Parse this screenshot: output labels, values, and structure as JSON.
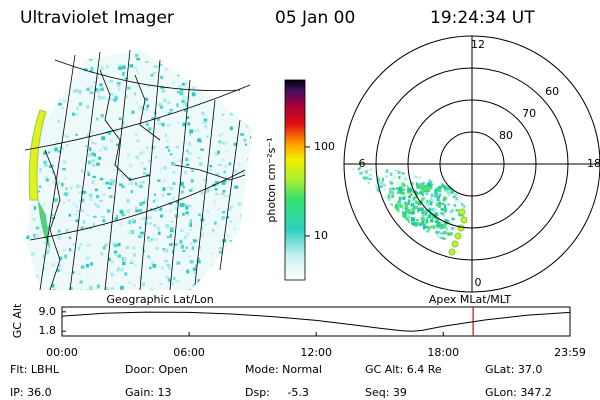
{
  "header": {
    "title": "Ultraviolet Imager",
    "date": "05 Jan 00",
    "time": "19:24:34 UT"
  },
  "chart_data": [
    {
      "type": "map",
      "title": "Geographic Lat/Lon"
    },
    {
      "type": "colorbar",
      "label": "photon cm⁻²s⁻¹",
      "log_scale": true,
      "clim": [
        3.2,
        565
      ],
      "ticks": [
        10,
        100
      ]
    },
    {
      "type": "polar",
      "title": "Apex MLat/MLT",
      "rlim": [
        90,
        50
      ],
      "rticks": [
        80,
        70,
        60
      ],
      "theta_ticks": [
        0,
        6,
        12,
        18
      ]
    },
    {
      "type": "line",
      "ylabel": "GC Alt",
      "color": "#000000",
      "x": [
        0,
        2,
        4,
        6,
        8,
        10,
        12,
        14,
        15,
        16,
        16.5,
        17,
        18,
        20,
        22,
        23.983
      ],
      "values": [
        7.4,
        8.5,
        8.9,
        8.8,
        8.2,
        7.2,
        5.8,
        3.9,
        2.9,
        2.0,
        1.8,
        2.1,
        3.6,
        6.0,
        7.8,
        8.8
      ],
      "xlim": [
        0,
        23.983
      ],
      "xticks": [
        {
          "value": 0,
          "label": "00:00"
        },
        {
          "value": 6,
          "label": "06:00"
        },
        {
          "value": 12,
          "label": "12:00"
        },
        {
          "value": 18,
          "label": "18:00"
        },
        {
          "value": 23.983,
          "label": "23:59"
        }
      ],
      "ylim": [
        0,
        10.8
      ],
      "yticks": [
        1.8,
        {
          "value": 9,
          "label": "9.0"
        }
      ],
      "marker": {
        "x": 19.409,
        "color": "#e00000"
      }
    }
  ],
  "footer": {
    "rows": [
      [
        "Flt: LBHL",
        "Door: Open",
        "Mode: Normal",
        "GC Alt: 6.4 Re",
        "GLat: 37.0"
      ],
      [
        "IP: 36.0",
        "Gain: 13",
        "Dsp:     -5.3",
        "Seq: 39",
        "GLon: 347.2"
      ]
    ]
  }
}
